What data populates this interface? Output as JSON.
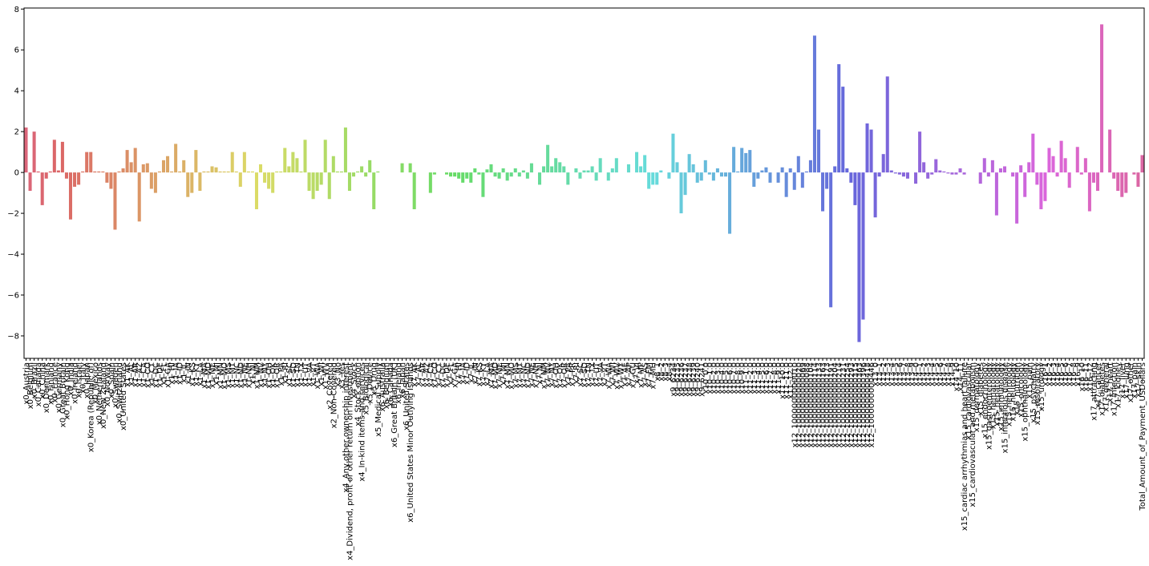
{
  "chart_data": {
    "type": "bar",
    "palette": "husl",
    "categories": [
      "x0_Austria",
      "x0_Belgium",
      "x0_Brazil",
      "x0_Canada",
      "x0_China",
      "x0_Denmark",
      "x0_Finland",
      "x0_France",
      "x0_Germany",
      "x0_Great Britain",
      "x0_Hong Kong",
      "x0_India",
      "x0_Ireland",
      "x0_Israel",
      "x0_Italy",
      "x0_Japan",
      "x0_Korea (Republic of)",
      "x0_Mexico",
      "x0_Netherlands",
      "x0_New Zealand",
      "x0_Norway",
      "x0_Spain",
      "x0_Sweden",
      "x0_Switzerland",
      "x0_United States",
      "x1_AK",
      "x1_AL",
      "x1_AR",
      "x1_AZ",
      "x1_CA",
      "x1_CO",
      "x1_CT",
      "x1_DC",
      "x1_DE",
      "x1_FL",
      "x1_GA",
      "x1_HI",
      "x1_IA",
      "x1_ID",
      "x1_IL",
      "x1_IN",
      "x1_KS",
      "x1_KY",
      "x1_LA",
      "x1_MA",
      "x1_MD",
      "x1_ME",
      "x1_MI",
      "x1_MN",
      "x1_MO",
      "x1_MS",
      "x1_MT",
      "x1_NC",
      "x1_ND",
      "x1_NE",
      "x1_NH",
      "x1_NJ",
      "x1_NM",
      "x1_NV",
      "x1_NY",
      "x1_OH",
      "x1_OK",
      "x1_OR",
      "x1_PA",
      "x1_RI",
      "x1_SC",
      "x1_SD",
      "x1_TN",
      "x1_TX",
      "x1_UT",
      "x1_VA",
      "x1_VT",
      "x1_WA",
      "x1_WI",
      "x1_WV",
      "x2_Covered",
      "x2_Non-Covered",
      "x3_No",
      "x3_Yes",
      "x4_Any other ownership interest",
      "x4_Dividend, profit or other return on investment",
      "x4_Stock",
      "x4_Stock option",
      "x4_In-kind items and services",
      "x5_Biological",
      "x5_Device",
      "x5_Drug",
      "x5_Medical Supply",
      "x6_Australia",
      "x6_Belgium",
      "x6_Canada",
      "x6_Great Britain (UK)",
      "x6_Ireland",
      "x6_Japan",
      "x6_United States",
      "x6_United States Minor Outlying Islands",
      "x7_AK",
      "x7_AL",
      "x7_AR",
      "x7_AZ",
      "x7_CA",
      "x7_CO",
      "x7_CT",
      "x7_DC",
      "x7_DE",
      "x7_FL",
      "x7_GA",
      "x7_HI",
      "x7_IA",
      "x7_ID",
      "x7_IL",
      "x7_IN",
      "x7_KS",
      "x7_KY",
      "x7_LA",
      "x7_MA",
      "x7_MD",
      "x7_ME",
      "x7_MI",
      "x7_MN",
      "x7_MO",
      "x7_MS",
      "x7_MT",
      "x7_NC",
      "x7_ND",
      "x7_NE",
      "x7_NH",
      "x7_NJ",
      "x7_NM",
      "x7_NV",
      "x7_NY",
      "x7_OH",
      "x7_OK",
      "x7_OR",
      "x7_PA",
      "x7_PR",
      "x7_RI",
      "x7_SC",
      "x7_SD",
      "x7_TN",
      "x7_TX",
      "x7_UT",
      "x7_VA",
      "x7_VT",
      "x7_WA",
      "x7_WI",
      "x7_WV",
      "x7_WY",
      "x7_AE",
      "x7_AP",
      "x7_GU",
      "x7_VI",
      "x7_MP",
      "x7_AS",
      "x7_FM",
      "x7_MH",
      "x8_1",
      "x8_2",
      "x8_3",
      "x8_4",
      "x9_6234",
      "x9_6235",
      "x9_6236",
      "x9_6237",
      "x9_6238",
      "x9_6239",
      "x9_6240",
      "x9_6241",
      "x10_0.0",
      "x10_1.0",
      "x10_2.0",
      "x10_3.0",
      "x10_4.0",
      "x10_5.0",
      "x10_6.0",
      "x10_7.0",
      "x10_8.0",
      "x10_9.0",
      "x11_1.0",
      "x11_2.0",
      "x11_3.0",
      "x11_4.0",
      "x11_5.0",
      "x11_6.0",
      "x11_7.0",
      "x11_8.0",
      "x11_9.0",
      "x11_10.0",
      "x11_11.0",
      "x11_12.0",
      "x12_1000000000010",
      "x12_1000000000020",
      "x12_1000000000069",
      "x12_1000000000088",
      "x12_1000000000104",
      "x12_1000000000114",
      "x12_1000000000133",
      "x12_1000000000163",
      "x12_1000000000173",
      "x12_1000000000191",
      "x12_1000000000204",
      "x12_1000000000214",
      "x12_1000000000231",
      "x12_1000000000254",
      "x12_1000000000293",
      "x12_1000000000315",
      "x12_1000000000363",
      "x12_1000000000396",
      "x12_1000000000418",
      "x12_1000000000446",
      "x13_0",
      "x13_1",
      "x13_2",
      "x13_3",
      "x13_4",
      "x13_5",
      "x13_6",
      "x13_7",
      "x13_8",
      "x13_9",
      "x14_0",
      "x14_1",
      "x14_2",
      "x14_3",
      "x14_4",
      "x14_5",
      "x14_6",
      "x14_7",
      "x14_8",
      "x14_9",
      "x14_10",
      "x14_11",
      "x15_cardiac arrhythmias and heart failure",
      "x15_cardiovascular",
      "x15_cardiovascular and metabolism",
      "x15_dermatology",
      "x15_diabetes",
      "x15_endocrinology",
      "x15_gastroenterology",
      "x15_hematology",
      "x15_hepatology",
      "x15_immunology",
      "x15_infectious disease",
      "x15_nephrology",
      "x15_neurology",
      "x15_nutrition",
      "x15_oncology",
      "x15_ophthalmology",
      "x15_pain",
      "x15_psychiatry",
      "x15_respiratory",
      "x15_urology",
      "x16_1",
      "x16_2",
      "x16_3",
      "x16_4",
      "x16_5",
      "x16_6",
      "x16_7",
      "x16_8",
      "x16_9",
      "x16_10",
      "x16_11",
      "x16_12",
      "x17_attracting",
      "x17_cancer",
      "x17_diabetes",
      "x17_general",
      "x17_heart",
      "x17_infection",
      "x17_kidney",
      "x17_liver",
      "x17_lung",
      "x17_other",
      "x17_pain",
      "x17_skin",
      "Total_Amount_of_Payment_USDollars"
    ],
    "values": [
      2.2,
      -0.9,
      2.0,
      0.05,
      -1.6,
      -0.3,
      0.05,
      1.6,
      0.1,
      1.5,
      -0.3,
      -2.3,
      -0.7,
      -0.6,
      0.05,
      1.0,
      1.0,
      0.05,
      0.05,
      0.05,
      -0.5,
      -0.8,
      -2.8,
      0.05,
      0.2,
      1.1,
      0.5,
      1.2,
      -2.4,
      0.4,
      0.45,
      -0.8,
      -1.0,
      0.05,
      0.6,
      0.8,
      0.05,
      1.4,
      0.05,
      0.6,
      -1.2,
      -1.0,
      1.1,
      -0.9,
      0.05,
      0.05,
      0.3,
      0.25,
      0.05,
      0.05,
      0.05,
      1.0,
      0.05,
      -0.7,
      1.0,
      0.05,
      0.05,
      -1.8,
      0.4,
      -0.5,
      -0.8,
      -1.0,
      0.05,
      0.05,
      1.2,
      0.3,
      1.0,
      0.7,
      0.05,
      1.6,
      -0.9,
      -1.3,
      -0.9,
      -0.6,
      1.6,
      -1.3,
      0.8,
      0.05,
      0.05,
      2.2,
      -0.9,
      -0.2,
      0.05,
      0.3,
      -0.2,
      0.6,
      -1.8,
      0.05,
      0,
      0,
      0,
      0,
      0,
      0.45,
      0,
      0.45,
      -1.8,
      0,
      0,
      0,
      -1.0,
      -0.1,
      0,
      0,
      -0.1,
      -0.2,
      -0.2,
      -0.3,
      -0.5,
      -0.3,
      -0.5,
      0.2,
      -0.1,
      -1.2,
      0.15,
      0.4,
      -0.2,
      -0.3,
      0.2,
      -0.4,
      -0.2,
      0.2,
      -0.2,
      0.1,
      -0.3,
      0.45,
      0,
      -0.6,
      0.3,
      1.35,
      0.3,
      0.7,
      0.5,
      0.3,
      -0.6,
      0,
      0.2,
      -0.3,
      0.1,
      0.1,
      0.3,
      -0.4,
      0.7,
      0,
      -0.4,
      0.2,
      0.7,
      0,
      0,
      0.4,
      0,
      1.0,
      0.3,
      0.85,
      -0.8,
      -0.6,
      -0.6,
      0.1,
      0,
      -0.3,
      1.9,
      0.5,
      -2.0,
      -1.1,
      0.9,
      0.4,
      -0.5,
      -0.4,
      0.6,
      -0.1,
      -0.4,
      0.2,
      -0.2,
      -0.2,
      -3.0,
      1.25,
      0.05,
      1.2,
      0.95,
      1.1,
      -0.7,
      -0.3,
      0.1,
      0.25,
      -0.5,
      0,
      -0.5,
      0.25,
      -1.2,
      0.2,
      -0.85,
      0.8,
      -0.75,
      0.05,
      0.6,
      6.7,
      2.1,
      -1.9,
      -0.8,
      -6.6,
      0.3,
      5.3,
      4.2,
      0.2,
      -0.5,
      -1.6,
      -8.3,
      -7.2,
      2.4,
      2.1,
      -2.2,
      -0.2,
      0.9,
      4.7,
      0.1,
      -0.05,
      -0.1,
      -0.2,
      -0.3,
      0,
      -0.55,
      2.0,
      0.5,
      -0.3,
      -0.1,
      0.65,
      0.1,
      0.05,
      -0.05,
      -0.1,
      -0.1,
      0.2,
      -0.1,
      0,
      0,
      0,
      -0.55,
      0.7,
      -0.2,
      0.6,
      -2.1,
      0.2,
      0.3,
      0,
      -0.2,
      -2.5,
      0.35,
      -1.2,
      0.5,
      1.9,
      -0.6,
      -1.8,
      -1.4,
      1.2,
      0.8,
      -0.2,
      1.55,
      0.7,
      -0.75,
      0,
      1.25,
      -0.1,
      0.7,
      -1.9,
      -0.5,
      -0.9,
      7.25,
      0,
      2.1,
      -0.3,
      -0.9,
      -1.2,
      -1.0,
      0,
      -0.1,
      -0.7,
      0.85
    ],
    "ylim": [
      -9.1,
      8.05
    ],
    "yticks": [
      {
        "value": -8,
        "label": "−8"
      },
      {
        "value": -6,
        "label": "−6"
      },
      {
        "value": -4,
        "label": "−4"
      },
      {
        "value": -2,
        "label": "−2"
      },
      0,
      2,
      4,
      6,
      8
    ]
  }
}
